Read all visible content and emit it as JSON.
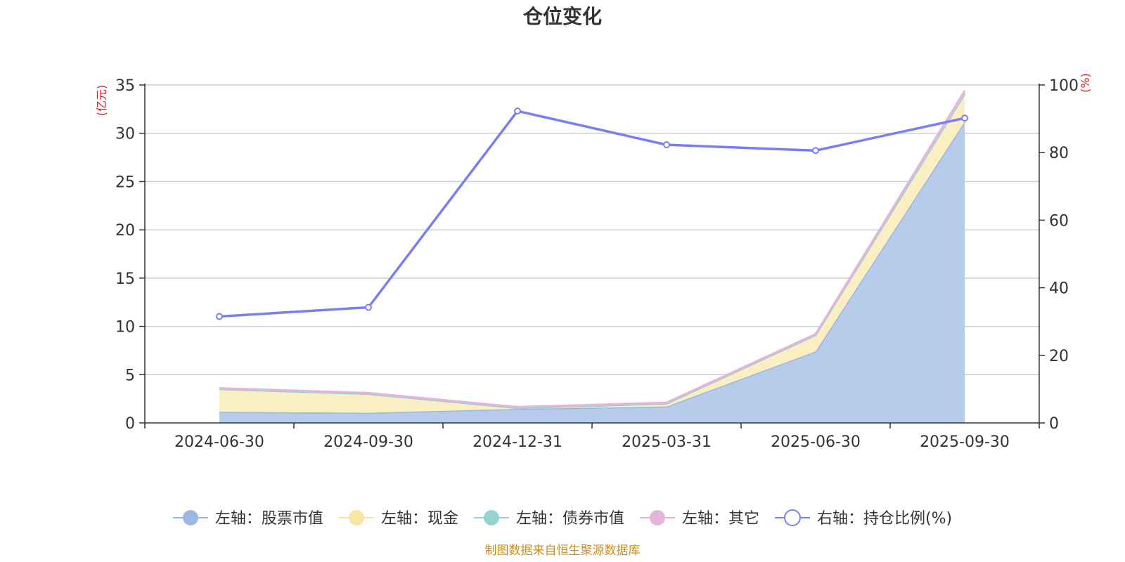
{
  "chart_data": {
    "type": "area",
    "title": "仓位变化",
    "categories": [
      "2024-06-30",
      "2024-09-30",
      "2024-12-31",
      "2025-03-31",
      "2025-06-30",
      "2025-09-30"
    ],
    "left_axis": {
      "unit": "(亿元)",
      "ylim": [
        0,
        35
      ],
      "ticks": [
        0,
        5,
        10,
        15,
        20,
        25,
        30,
        35
      ]
    },
    "right_axis": {
      "unit": "(%)",
      "ylim": [
        0,
        100
      ],
      "ticks": [
        0,
        20,
        40,
        60,
        80,
        100
      ]
    },
    "series": [
      {
        "name": "左轴：股票市值",
        "axis": "left",
        "stacked": true,
        "color": "#9bb7e2",
        "fill": "#b7cbea",
        "values": [
          1.15,
          1.05,
          1.45,
          1.7,
          7.4,
          31.2
        ]
      },
      {
        "name": "左轴：现金",
        "axis": "left",
        "stacked": true,
        "color": "#f7e5a4",
        "fill": "#faefc2",
        "values": [
          2.35,
          1.95,
          0.1,
          0.3,
          1.7,
          2.8
        ]
      },
      {
        "name": "左轴：债券市值",
        "axis": "left",
        "stacked": true,
        "color": "#95d3d3",
        "fill": "#bfe4e4",
        "values": [
          0.0,
          0.0,
          0.0,
          0.0,
          0.0,
          0.1
        ]
      },
      {
        "name": "左轴：其它",
        "axis": "left",
        "stacked": true,
        "color": "#e6b4da",
        "fill": "#efcbe6",
        "values": [
          0.1,
          0.1,
          0.1,
          0.1,
          0.1,
          0.3
        ]
      },
      {
        "name": "右轴：持仓比例(%)",
        "axis": "right",
        "stacked": false,
        "color": "#7b7ef0",
        "fill": "#ffffff",
        "values": [
          31.5,
          34.2,
          92.3,
          82.3,
          80.6,
          90.2
        ]
      }
    ],
    "legend_position": "bottom",
    "grid": true
  },
  "footer": {
    "source": "制图数据来自恒生聚源数据库"
  }
}
